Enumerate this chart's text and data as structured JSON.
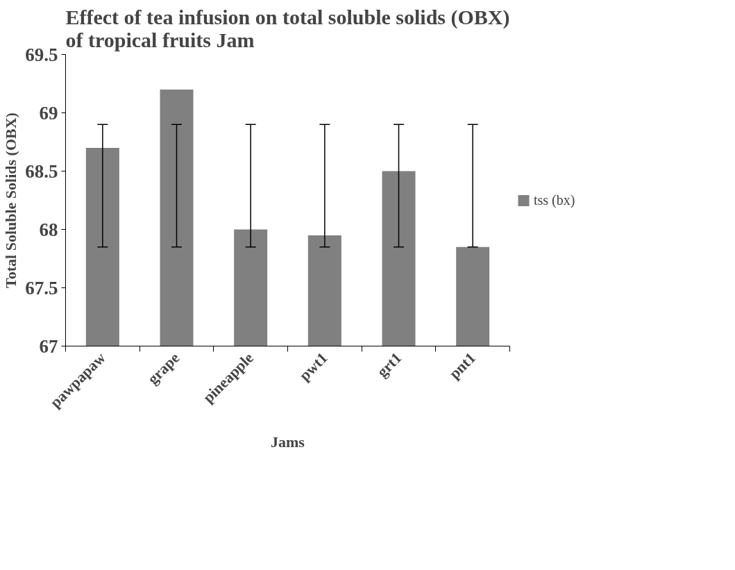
{
  "chart_data": {
    "type": "bar",
    "title": "Effect of tea infusion on total soluble solids (OBX) of tropical fruits Jam",
    "xlabel": "Jams",
    "ylabel": "Total Soluble Solids (OBX)",
    "categories": [
      "pawpapaw",
      "grape",
      "pineapple",
      "pwt1",
      "grt1",
      "pnt1"
    ],
    "series": [
      {
        "name": "tss (bx)",
        "color": "#808080",
        "values": [
          68.7,
          69.2,
          68.0,
          67.95,
          68.5,
          67.85
        ],
        "errors": [
          [
            67.85,
            68.9
          ],
          [
            67.85,
            68.9
          ],
          [
            67.85,
            68.9
          ],
          [
            67.85,
            68.9
          ],
          [
            67.85,
            68.9
          ],
          [
            67.85,
            68.9
          ]
        ]
      }
    ],
    "ylim": [
      67,
      69.5
    ],
    "yticks": [
      67,
      67.5,
      68,
      68.5,
      69,
      69.5
    ],
    "legend": "right"
  }
}
